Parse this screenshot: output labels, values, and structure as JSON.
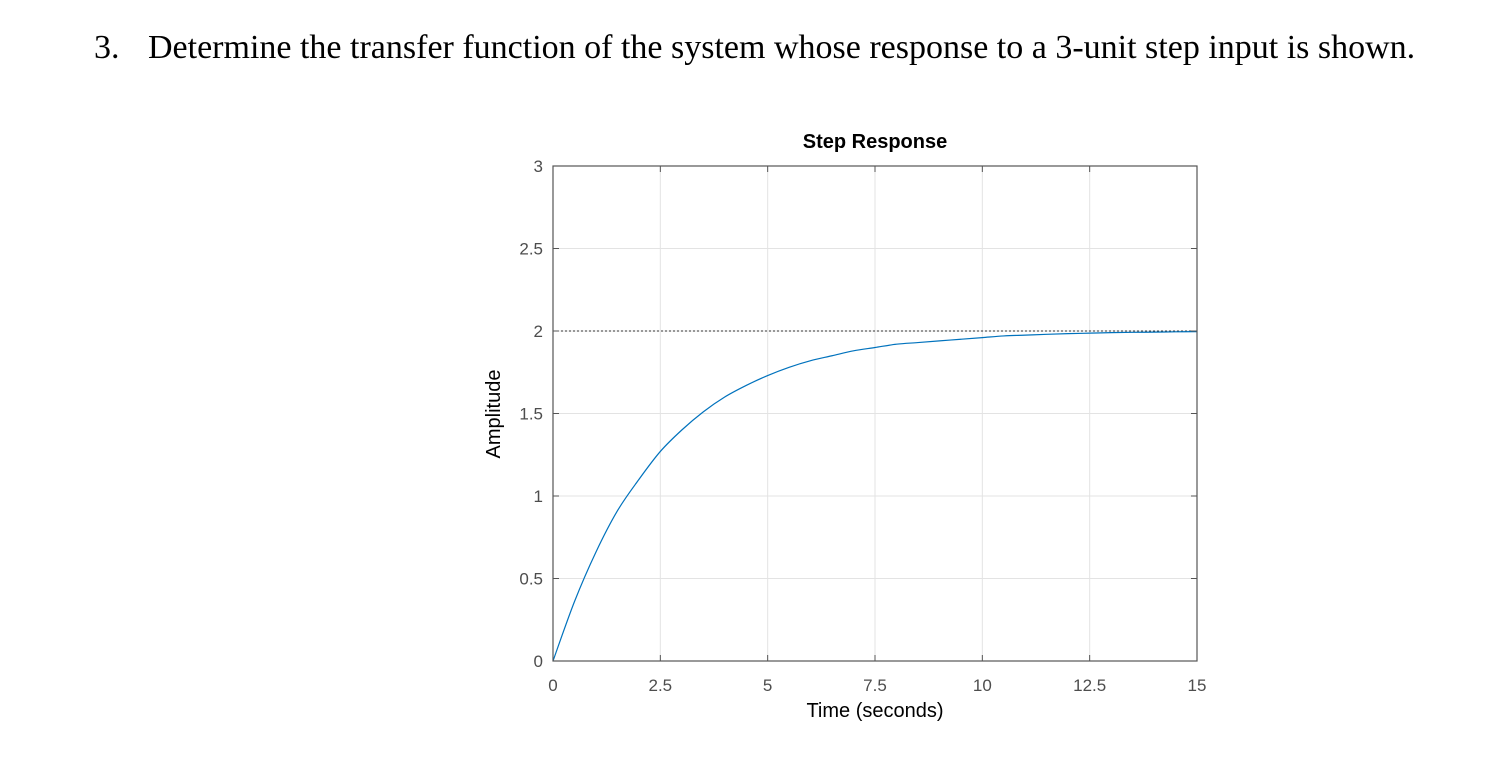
{
  "problem": {
    "number": "3.",
    "text": "Determine the transfer function of the system whose response to a 3-unit step input is shown."
  },
  "chart_data": {
    "type": "line",
    "title": "Step Response",
    "xlabel": "Time (seconds)",
    "ylabel": "Amplitude",
    "xlim": [
      0,
      15
    ],
    "ylim": [
      0,
      3
    ],
    "xticks": [
      0,
      2.5,
      5,
      7.5,
      10,
      12.5,
      15
    ],
    "xtick_labels": [
      "0",
      "2.5",
      "5",
      "7.5",
      "10",
      "12.5",
      "15"
    ],
    "yticks": [
      0,
      0.5,
      1,
      1.5,
      2,
      2.5,
      3
    ],
    "ytick_labels": [
      "0",
      "0.5",
      "1",
      "1.5",
      "2",
      "2.5",
      "3"
    ],
    "grid": true,
    "steady_state": 2,
    "series": [
      {
        "x": [
          0,
          0.5,
          1,
          1.5,
          2,
          2.5,
          3,
          3.5,
          4,
          4.5,
          5,
          5.5,
          6,
          6.5,
          7,
          7.5,
          8,
          8.5,
          9,
          9.5,
          10,
          10.5,
          11,
          11.5,
          12,
          12.5,
          13,
          13.5,
          14,
          14.5,
          15
        ],
        "values": [
          0,
          0.36,
          0.66,
          0.91,
          1.1,
          1.27,
          1.4,
          1.51,
          1.6,
          1.67,
          1.73,
          1.78,
          1.82,
          1.85,
          1.88,
          1.9,
          1.92,
          1.93,
          1.94,
          1.95,
          1.96,
          1.97,
          1.975,
          1.98,
          1.984,
          1.987,
          1.99,
          1.992,
          1.993,
          1.995,
          1.996
        ]
      }
    ],
    "colors": {
      "line": "#0072BD",
      "grid": "#e3e3e3",
      "axes": "#555555",
      "reference": "#333333"
    }
  }
}
